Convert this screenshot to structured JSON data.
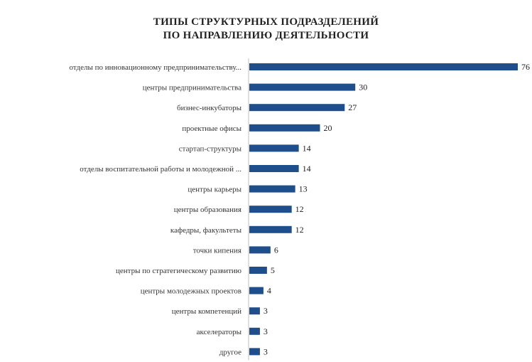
{
  "chart_data": {
    "type": "bar",
    "orientation": "horizontal",
    "title_line1": "ТИПЫ СТРУКТУРНЫХ ПОДРАЗДЕЛЕНИЙ",
    "title_line2": "ПО НАПРАВЛЕНИЮ ДЕЯТЕЛЬНОСТИ",
    "categories": [
      "отделы по инновационному предпринимательству...",
      "центры предпринимательства",
      "бизнес-инкубаторы",
      "проектные офисы",
      "стартап-структуры",
      "отделы воспитательной работы и молодежной ...",
      "центры карьеры",
      "центры образования",
      "кафедры, факультеты",
      "точки кипения",
      "центры по стратегическому развитию",
      "центры молодежных проектов",
      "центры компетенций",
      "акселераторы",
      "другое"
    ],
    "values": [
      76,
      30,
      27,
      20,
      14,
      14,
      13,
      12,
      12,
      6,
      5,
      4,
      3,
      3,
      3
    ],
    "bar_color": "#1f4e8c",
    "grid": false,
    "legend": "none"
  }
}
